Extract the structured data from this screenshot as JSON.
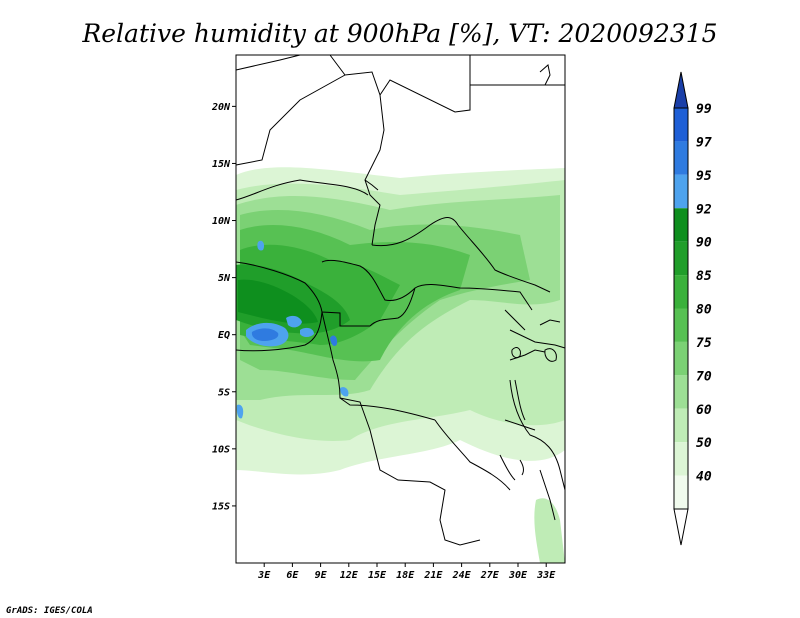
{
  "title": "Relative humidity at 900hPa [%], VT: 2020092315",
  "credit": "GrADS: IGES/COLA",
  "map": {
    "lat_labels": [
      "20N",
      "15N",
      "10N",
      "5N",
      "EQ",
      "5S",
      "10S",
      "15S"
    ],
    "lon_labels": [
      "3E",
      "6E",
      "9E",
      "12E",
      "15E",
      "18E",
      "21E",
      "24E",
      "27E",
      "30E",
      "33E"
    ],
    "extent": {
      "lon_min": 0,
      "lon_max": 35,
      "lat_min": -20,
      "lat_max": 24.5
    }
  },
  "colorbar": {
    "labels": [
      "99",
      "97",
      "95",
      "92",
      "90",
      "85",
      "80",
      "75",
      "70",
      "60",
      "50",
      "40"
    ],
    "colors": [
      "#1e5fd6",
      "#2f7be0",
      "#4ea3ee",
      "#0e8f1e",
      "#209e2a",
      "#3ab13b",
      "#57c153",
      "#7bd174",
      "#9ddf95",
      "#bfecb6",
      "#dcf5d5",
      "#f1fbee"
    ],
    "arrow_top_color": "#1a3fa8",
    "arrow_bottom_color": "#ffffff"
  }
}
